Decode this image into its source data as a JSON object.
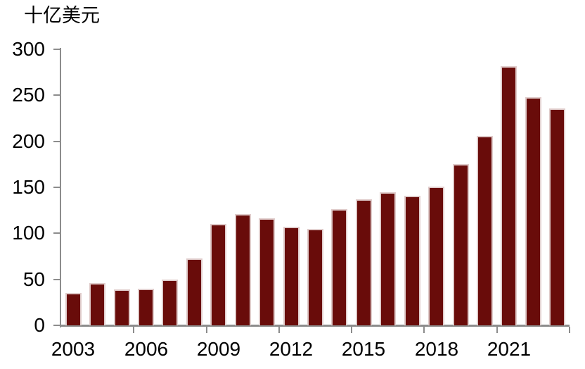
{
  "chart_data": {
    "type": "bar",
    "title": "十亿美元",
    "categories": [
      2003,
      2004,
      2005,
      2006,
      2007,
      2008,
      2009,
      2010,
      2011,
      2012,
      2013,
      2014,
      2015,
      2016,
      2017,
      2018,
      2019,
      2020,
      2021,
      2022,
      2023
    ],
    "values": [
      35,
      46,
      39,
      40,
      50,
      73,
      110,
      121,
      116,
      107,
      105,
      126,
      137,
      145,
      141,
      151,
      175,
      206,
      282,
      248,
      236
    ],
    "xlabel": "",
    "ylabel": "十亿美元",
    "ylim": [
      0,
      300
    ],
    "yticks": [
      0,
      50,
      100,
      150,
      200,
      250,
      300
    ],
    "xtick_labels": [
      "2003",
      "2006",
      "2009",
      "2012",
      "2015",
      "2018",
      "2021"
    ],
    "xtick_label_years": [
      2003,
      2006,
      2009,
      2012,
      2015,
      2018,
      2021
    ],
    "grid": false,
    "legend_position": "none",
    "colors": {
      "bar_fill": "#690c0a",
      "bar_edge": "#e0cccb",
      "axis": "#8c8c8c",
      "text": "#000000",
      "background": "#ffffff"
    }
  }
}
